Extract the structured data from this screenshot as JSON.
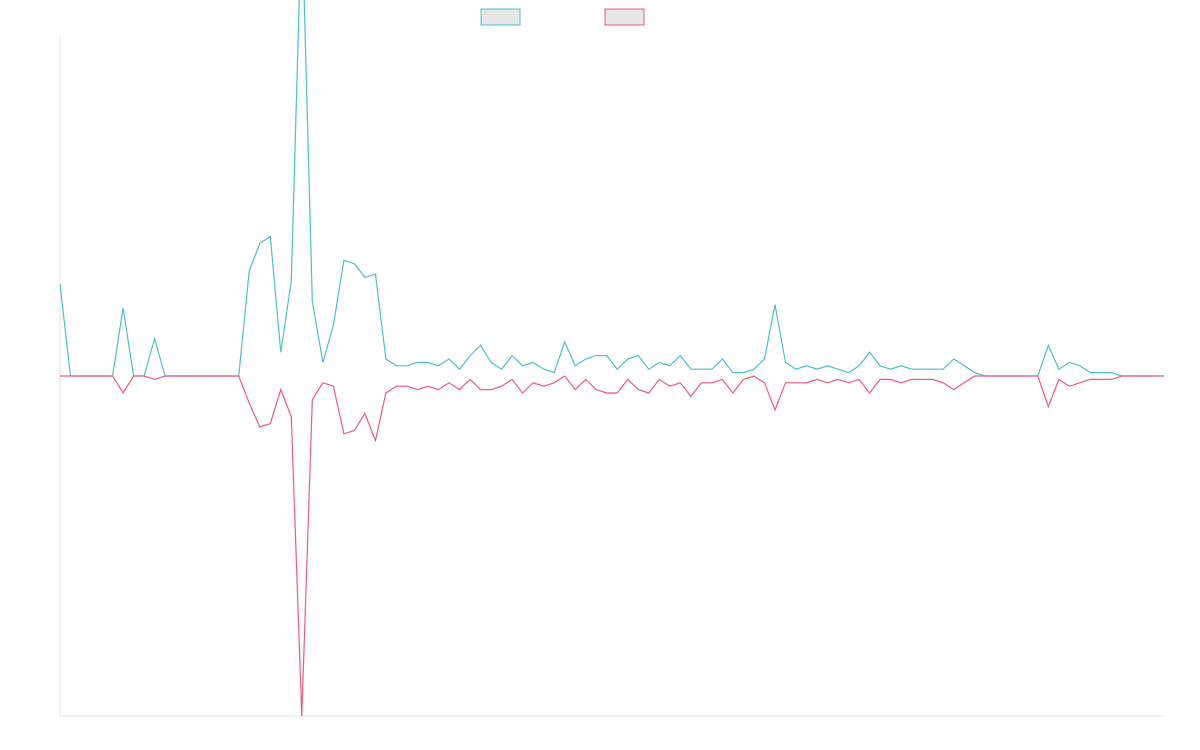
{
  "chart_data": {
    "type": "line",
    "title": "",
    "xlabel": "",
    "ylabel": "",
    "grid": false,
    "legend_position": "top",
    "ylim": [
      -100,
      100
    ],
    "x": [
      0,
      1,
      2,
      3,
      4,
      5,
      6,
      7,
      8,
      9,
      10,
      11,
      12,
      13,
      14,
      15,
      16,
      17,
      18,
      19,
      20,
      21,
      22,
      23,
      24,
      25,
      26,
      27,
      28,
      29,
      30,
      31,
      32,
      33,
      34,
      35,
      36,
      37,
      38,
      39,
      40,
      41,
      42,
      43,
      44,
      45,
      46,
      47,
      48,
      49,
      50,
      51,
      52,
      53,
      54,
      55,
      56,
      57,
      58,
      59,
      60,
      61,
      62,
      63,
      64,
      65,
      66,
      67,
      68,
      69,
      70,
      71,
      72,
      73,
      74,
      75,
      76,
      77,
      78,
      79,
      80,
      81,
      82,
      83,
      84,
      85,
      86,
      87,
      88,
      89,
      90,
      91,
      92,
      93,
      94,
      95,
      96,
      97,
      98,
      99,
      100,
      101,
      102,
      103,
      104,
      105
    ],
    "series": [
      {
        "name": "",
        "color": "#4bc0c8",
        "values": [
          27,
          0,
          0,
          0,
          0,
          0,
          20,
          0,
          0,
          11,
          0,
          0,
          0,
          0,
          0,
          0,
          0,
          0,
          31,
          39,
          41,
          7,
          28,
          137,
          22,
          4,
          15,
          34,
          33,
          29,
          30,
          5,
          3,
          3,
          4,
          4,
          3,
          5,
          2,
          6,
          9,
          4,
          2,
          6,
          3,
          4,
          2,
          1,
          10,
          3,
          5,
          6,
          6,
          2,
          5,
          6,
          2,
          4,
          3,
          6,
          2,
          2,
          2,
          5,
          1,
          1,
          2,
          5,
          21,
          4,
          2,
          3,
          2,
          3,
          2,
          1,
          3,
          7,
          3,
          2,
          3,
          2,
          2,
          2,
          2,
          5,
          3,
          1,
          0,
          0,
          0,
          0,
          0,
          0,
          9,
          2,
          4,
          3,
          1,
          1,
          1,
          0,
          0,
          0,
          0,
          0
        ]
      },
      {
        "name": "",
        "color": "#ee5a80",
        "values": [
          0,
          0,
          0,
          0,
          0,
          0,
          -5,
          0,
          0,
          -1,
          0,
          0,
          0,
          0,
          0,
          0,
          0,
          0,
          -8,
          -15,
          -14,
          -4,
          -12,
          -100,
          -7,
          -2,
          -3,
          -17,
          -16,
          -11,
          -19,
          -5,
          -3,
          -3,
          -4,
          -3,
          -4,
          -2,
          -4,
          -1,
          -4,
          -4,
          -3,
          -1,
          -5,
          -2,
          -3,
          -2,
          0,
          -4,
          -1,
          -4,
          -5,
          -5,
          -1,
          -4,
          -5,
          -1,
          -3,
          -2,
          -6,
          -2,
          -2,
          -1,
          -5,
          -1,
          0,
          -2,
          -10,
          -2,
          -2,
          -2,
          -1,
          -2,
          -1,
          -2,
          -1,
          -5,
          -1,
          -1,
          -2,
          -1,
          -1,
          -1,
          -2,
          -4,
          -2,
          0,
          0,
          0,
          0,
          0,
          0,
          0,
          -9,
          -1,
          -3,
          -2,
          -1,
          -1,
          -1,
          0,
          0,
          0,
          0,
          0
        ]
      }
    ]
  }
}
